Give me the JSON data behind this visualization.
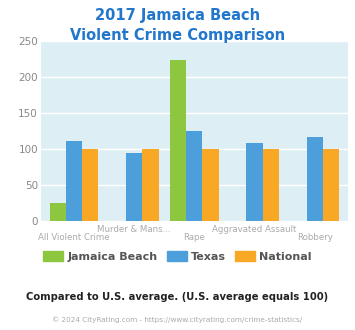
{
  "title_line1": "2017 Jamaica Beach",
  "title_line2": "Violent Crime Comparison",
  "title_color": "#2277cc",
  "categories": [
    "All Violent Crime",
    "Murder & Mans...",
    "Rape",
    "Aggravated Assault",
    "Robbery"
  ],
  "row1_labels": [
    "",
    "Murder & Mans...",
    "",
    "Aggravated Assault",
    ""
  ],
  "row2_labels": [
    "All Violent Crime",
    "",
    "Rape",
    "",
    "Robbery"
  ],
  "jamaica_beach": [
    25,
    0,
    224,
    0,
    0
  ],
  "texas": [
    111,
    94,
    125,
    108,
    117
  ],
  "national": [
    100,
    100,
    100,
    100,
    100
  ],
  "jamaica_beach_color": "#8dc63f",
  "texas_color": "#4d9fdc",
  "national_color": "#f9a825",
  "ylim": [
    0,
    250
  ],
  "yticks": [
    0,
    50,
    100,
    150,
    200,
    250
  ],
  "plot_bg": "#deeef5",
  "grid_color": "#ffffff",
  "xtick_color": "#aaaaaa",
  "ytick_color": "#888888",
  "legend_color": "#555555",
  "note_text": "Compared to U.S. average. (U.S. average equals 100)",
  "note_color": "#222222",
  "copyright_text": "© 2024 CityRating.com - https://www.cityrating.com/crime-statistics/",
  "copyright_color": "#aaaaaa",
  "copyright_link_color": "#4d9fdc"
}
